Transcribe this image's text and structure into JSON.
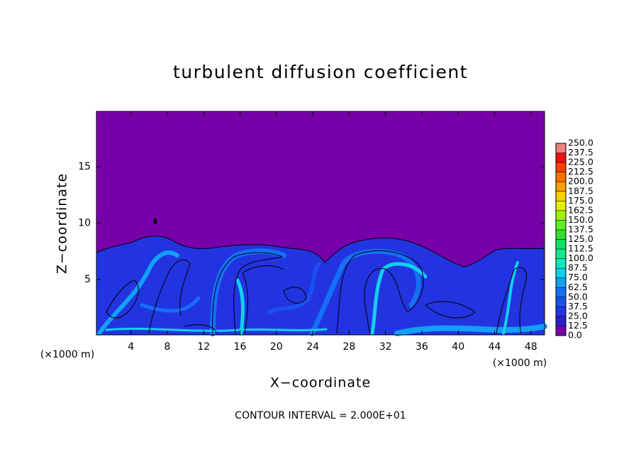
{
  "chart_data": {
    "type": "contour",
    "title": "turbulent diffusion coefficient",
    "x_label": "X−coordinate",
    "y_label": "Z−coordinate",
    "x_unit_label": "(×1000 m)",
    "y_unit_label": "(×1000 m)",
    "annotation": "CONTOUR INTERVAL = 2.000E+01",
    "xlim": [
      0.2,
      49.5
    ],
    "ylim": [
      0.1,
      19.9
    ],
    "xticks": [
      4,
      8,
      12,
      16,
      20,
      24,
      28,
      32,
      36,
      40,
      44,
      48
    ],
    "yticks": [
      5,
      10,
      15
    ],
    "colorbar": {
      "ticks": [
        {
          "value": 0,
          "label": "0.0"
        },
        {
          "value": 12.5,
          "label": "12.5"
        },
        {
          "value": 25,
          "label": "25.0"
        },
        {
          "value": 37.5,
          "label": "37.5"
        },
        {
          "value": 50,
          "label": "50.0"
        },
        {
          "value": 62.5,
          "label": "62.5"
        },
        {
          "value": 75,
          "label": "75.0"
        },
        {
          "value": 87.5,
          "label": "87.5"
        },
        {
          "value": 100,
          "label": "100.0"
        },
        {
          "value": 112.5,
          "label": "112.5"
        },
        {
          "value": 125,
          "label": "125.0"
        },
        {
          "value": 137.5,
          "label": "137.5"
        },
        {
          "value": 150,
          "label": "150.0"
        },
        {
          "value": 162.5,
          "label": "162.5"
        },
        {
          "value": 175,
          "label": "175.0"
        },
        {
          "value": 187.5,
          "label": "187.5"
        },
        {
          "value": 200,
          "label": "200.0"
        },
        {
          "value": 212.5,
          "label": "212.5"
        },
        {
          "value": 225,
          "label": "225.0"
        },
        {
          "value": 237.5,
          "label": "237.5"
        },
        {
          "value": 250,
          "label": "250.0"
        }
      ],
      "colors": [
        "#7800a8",
        "#2a1ec8",
        "#2234e0",
        "#1a50f0",
        "#1470f8",
        "#12a0f8",
        "#10d0f0",
        "#10e8c0",
        "#10e890",
        "#10e060",
        "#30e030",
        "#60f020",
        "#a0f010",
        "#e0f000",
        "#f8d000",
        "#f8a000",
        "#f87000",
        "#f84000",
        "#f01010",
        "#f08080"
      ]
    }
  }
}
